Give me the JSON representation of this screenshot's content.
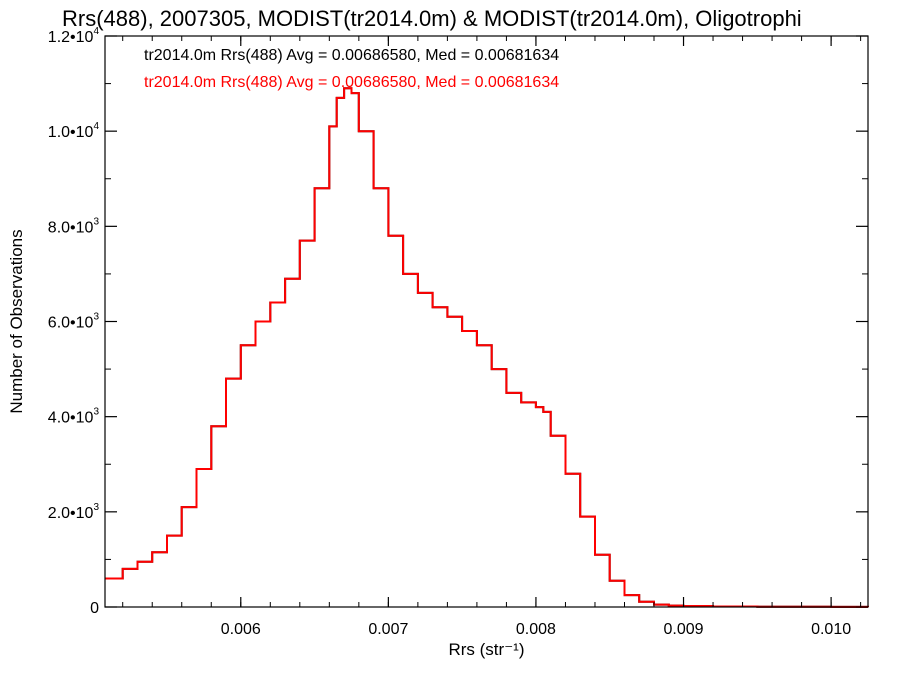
{
  "chart_data": {
    "type": "line",
    "title": "Rrs(488), 2007305, MODIST(tr2014.0m) & MODIST(tr2014.0m), Oligotrophi",
    "xlabel": "Rrs (str⁻¹)",
    "ylabel": "Number of Observations",
    "xlim": [
      0.00508,
      0.01025
    ],
    "ylim": [
      0,
      12000
    ],
    "x_ticks": [
      {
        "value": 0.006,
        "label": "0.006"
      },
      {
        "value": 0.007,
        "label": "0.007"
      },
      {
        "value": 0.008,
        "label": "0.008"
      },
      {
        "value": 0.009,
        "label": "0.009"
      },
      {
        "value": 0.01,
        "label": "0.010"
      }
    ],
    "y_ticks": [
      {
        "value": 0,
        "mant": "0",
        "exp": ""
      },
      {
        "value": 2000,
        "mant": "2.0•10",
        "exp": "3"
      },
      {
        "value": 4000,
        "mant": "4.0•10",
        "exp": "3"
      },
      {
        "value": 6000,
        "mant": "6.0•10",
        "exp": "3"
      },
      {
        "value": 8000,
        "mant": "8.0•10",
        "exp": "3"
      },
      {
        "value": 10000,
        "mant": "1.0•10",
        "exp": "4"
      },
      {
        "value": 12000,
        "mant": "1.2•10",
        "exp": "4"
      }
    ],
    "legend_position": "top-left",
    "grid": false,
    "series": [
      {
        "name": "tr2014.0m Rrs(488) Avg = 0.00686580, Med = 0.00681634",
        "color": "#000000",
        "x": [
          0.00508,
          0.0052,
          0.0053,
          0.0054,
          0.0055,
          0.0056,
          0.0057,
          0.0058,
          0.0059,
          0.006,
          0.0061,
          0.0062,
          0.0063,
          0.0064,
          0.0065,
          0.0066,
          0.00665,
          0.0067,
          0.00675,
          0.0068,
          0.0069,
          0.007,
          0.0071,
          0.0072,
          0.0073,
          0.0074,
          0.0075,
          0.0076,
          0.0077,
          0.0078,
          0.0079,
          0.008,
          0.00805,
          0.0081,
          0.0082,
          0.0083,
          0.0084,
          0.0085,
          0.0086,
          0.0087,
          0.0088,
          0.0089,
          0.009,
          0.0092,
          0.0095,
          0.01,
          0.01025
        ],
        "y": [
          600,
          800,
          950,
          1150,
          1500,
          2100,
          2900,
          3800,
          4800,
          5500,
          6000,
          6400,
          6900,
          7700,
          8800,
          10100,
          10700,
          10900,
          10800,
          10000,
          8800,
          7800,
          7000,
          6600,
          6300,
          6100,
          5800,
          5500,
          5000,
          4500,
          4300,
          4200,
          4100,
          3600,
          2800,
          1900,
          1100,
          550,
          250,
          110,
          50,
          30,
          20,
          10,
          5,
          2,
          0
        ]
      },
      {
        "name": "tr2014.0m Rrs(488) Avg = 0.00686580, Med = 0.00681634",
        "color": "#ff0000",
        "x": [
          0.00508,
          0.0052,
          0.0053,
          0.0054,
          0.0055,
          0.0056,
          0.0057,
          0.0058,
          0.0059,
          0.006,
          0.0061,
          0.0062,
          0.0063,
          0.0064,
          0.0065,
          0.0066,
          0.00665,
          0.0067,
          0.00675,
          0.0068,
          0.0069,
          0.007,
          0.0071,
          0.0072,
          0.0073,
          0.0074,
          0.0075,
          0.0076,
          0.0077,
          0.0078,
          0.0079,
          0.008,
          0.00805,
          0.0081,
          0.0082,
          0.0083,
          0.0084,
          0.0085,
          0.0086,
          0.0087,
          0.0088,
          0.0089,
          0.009,
          0.0092,
          0.0095,
          0.01,
          0.01025
        ],
        "y": [
          600,
          800,
          950,
          1150,
          1500,
          2100,
          2900,
          3800,
          4800,
          5500,
          6000,
          6400,
          6900,
          7700,
          8800,
          10100,
          10700,
          10900,
          10800,
          10000,
          8800,
          7800,
          7000,
          6600,
          6300,
          6100,
          5800,
          5500,
          5000,
          4500,
          4300,
          4200,
          4100,
          3600,
          2800,
          1900,
          1100,
          550,
          250,
          110,
          50,
          30,
          20,
          10,
          5,
          2,
          0
        ]
      }
    ]
  }
}
